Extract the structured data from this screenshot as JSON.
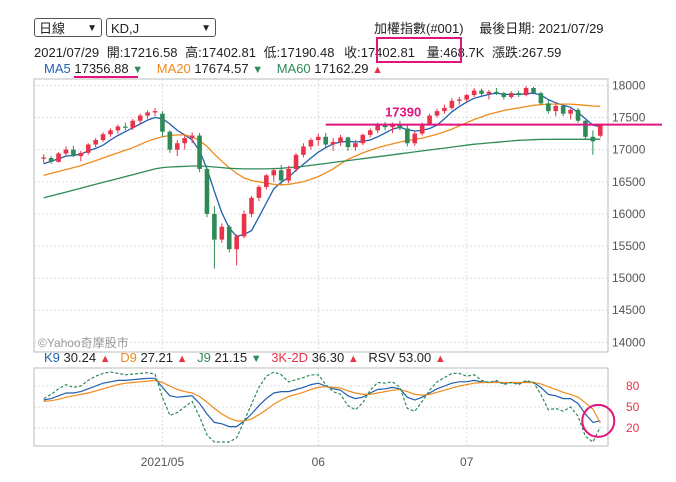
{
  "controls": {
    "period": "日線",
    "indicator": "KD,J"
  },
  "header": {
    "index_name": "加權指數(#001)",
    "last_date_label": "最後日期:",
    "last_date": "2021/07/29",
    "row": {
      "date": "2021/07/29",
      "open": "開:17216.58",
      "high": "高:17402.81",
      "low": "低:17190.48",
      "close": "收:17402.81",
      "volume": "量:468.7K",
      "change": "漲跌:267.59"
    }
  },
  "ma_legend": [
    {
      "label": "MA5",
      "value": "17356.88",
      "dir": "▼",
      "color": "#1f5fb0"
    },
    {
      "label": "MA20",
      "value": "17674.57",
      "dir": "▼",
      "color": "#f08a1c"
    },
    {
      "label": "MA60",
      "value": "17162.29",
      "dir": "▲",
      "color": "#2e8b57"
    }
  ],
  "kd_legend": [
    {
      "label": "K9",
      "value": "30.24",
      "dir": "▲",
      "color": "#1f5fb0"
    },
    {
      "label": "D9",
      "value": "27.21",
      "dir": "▲",
      "color": "#f08a1c"
    },
    {
      "label": "J9",
      "value": "21.15",
      "dir": "▼",
      "color": "#2e8b57"
    },
    {
      "label": "3K-2D",
      "value": "36.30",
      "dir": "▲",
      "color": "#e8334a"
    },
    {
      "label": "RSV",
      "value": "53.00",
      "dir": "▲",
      "color": "#222222"
    }
  ],
  "watermark": "©Yahoo奇摩股市",
  "annotation": {
    "label": "17390",
    "value": 17390,
    "color": "#e0147f"
  },
  "chart_data": {
    "type": "line",
    "price_axis": {
      "ticks": [
        14000,
        14500,
        15000,
        15500,
        16000,
        16500,
        17000,
        17500,
        18000
      ],
      "range": [
        13850,
        18100
      ]
    },
    "kd_axis": {
      "ticks": [
        20,
        50,
        80
      ],
      "range": [
        0,
        100
      ]
    },
    "x_labels": [
      {
        "label": "2021/05",
        "index": 16
      },
      {
        "label": "06",
        "index": 37
      },
      {
        "label": "07",
        "index": 57
      }
    ],
    "candles": [
      [
        16860,
        16930,
        16790,
        16880
      ],
      [
        16870,
        16900,
        16780,
        16810
      ],
      [
        16810,
        16960,
        16800,
        16940
      ],
      [
        16940,
        17050,
        16900,
        17000
      ],
      [
        17000,
        17060,
        16880,
        16900
      ],
      [
        16900,
        16980,
        16820,
        16950
      ],
      [
        16950,
        17100,
        16920,
        17080
      ],
      [
        17080,
        17180,
        17040,
        17150
      ],
      [
        17150,
        17270,
        17120,
        17240
      ],
      [
        17240,
        17330,
        17200,
        17300
      ],
      [
        17300,
        17390,
        17250,
        17360
      ],
      [
        17360,
        17420,
        17300,
        17340
      ],
      [
        17340,
        17480,
        17310,
        17450
      ],
      [
        17450,
        17560,
        17400,
        17530
      ],
      [
        17530,
        17610,
        17480,
        17580
      ],
      [
        17580,
        17650,
        17520,
        17600
      ],
      [
        17560,
        17600,
        17200,
        17280
      ],
      [
        17280,
        17300,
        16950,
        17000
      ],
      [
        17000,
        17150,
        16900,
        17100
      ],
      [
        17100,
        17230,
        17000,
        17180
      ],
      [
        17180,
        17270,
        17100,
        17220
      ],
      [
        17220,
        17260,
        16650,
        16700
      ],
      [
        16700,
        16720,
        15950,
        16000
      ],
      [
        16000,
        16120,
        15150,
        15600
      ],
      [
        15600,
        15850,
        15550,
        15800
      ],
      [
        15800,
        15830,
        15400,
        15450
      ],
      [
        15450,
        15680,
        15200,
        15650
      ],
      [
        15650,
        16050,
        15620,
        16000
      ],
      [
        16000,
        16280,
        15950,
        16250
      ],
      [
        16250,
        16450,
        16200,
        16420
      ],
      [
        16420,
        16620,
        16380,
        16600
      ],
      [
        16600,
        16720,
        16500,
        16680
      ],
      [
        16680,
        16760,
        16450,
        16520
      ],
      [
        16520,
        16750,
        16480,
        16700
      ],
      [
        16700,
        16950,
        16650,
        16920
      ],
      [
        16920,
        17100,
        16880,
        17050
      ],
      [
        17050,
        17180,
        17000,
        17150
      ],
      [
        17150,
        17250,
        17060,
        17200
      ],
      [
        17200,
        17260,
        17020,
        17080
      ],
      [
        17080,
        17180,
        16980,
        17120
      ],
      [
        17120,
        17230,
        17060,
        17190
      ],
      [
        17190,
        17200,
        16980,
        17040
      ],
      [
        17040,
        17150,
        16980,
        17100
      ],
      [
        17100,
        17250,
        17070,
        17230
      ],
      [
        17230,
        17330,
        17190,
        17300
      ],
      [
        17300,
        17420,
        17260,
        17380
      ],
      [
        17380,
        17430,
        17300,
        17350
      ],
      [
        17350,
        17420,
        17260,
        17400
      ],
      [
        17400,
        17450,
        17300,
        17330
      ],
      [
        17330,
        17400,
        17050,
        17100
      ],
      [
        17100,
        17280,
        17060,
        17250
      ],
      [
        17250,
        17420,
        17220,
        17400
      ],
      [
        17400,
        17560,
        17380,
        17530
      ],
      [
        17530,
        17640,
        17500,
        17600
      ],
      [
        17600,
        17700,
        17560,
        17650
      ],
      [
        17650,
        17800,
        17620,
        17760
      ],
      [
        17760,
        17820,
        17700,
        17780
      ],
      [
        17780,
        17870,
        17740,
        17850
      ],
      [
        17850,
        17960,
        17820,
        17920
      ],
      [
        17920,
        17950,
        17820,
        17870
      ],
      [
        17870,
        17930,
        17780,
        17900
      ],
      [
        17900,
        17960,
        17850,
        17880
      ],
      [
        17880,
        17900,
        17780,
        17820
      ],
      [
        17820,
        17910,
        17790,
        17880
      ],
      [
        17880,
        17920,
        17820,
        17850
      ],
      [
        17850,
        17990,
        17830,
        17960
      ],
      [
        17960,
        17980,
        17860,
        17880
      ],
      [
        17880,
        17900,
        17700,
        17720
      ],
      [
        17720,
        17780,
        17560,
        17600
      ],
      [
        17600,
        17700,
        17520,
        17680
      ],
      [
        17680,
        17700,
        17520,
        17560
      ],
      [
        17560,
        17640,
        17470,
        17620
      ],
      [
        17620,
        17650,
        17420,
        17450
      ],
      [
        17450,
        17460,
        17160,
        17200
      ],
      [
        17200,
        17300,
        16920,
        17130
      ],
      [
        17216.58,
        17402.81,
        17190.48,
        17402.81
      ]
    ],
    "series": [
      {
        "name": "MA5",
        "color": "#1f5fb0",
        "values": [
          16780,
          16820,
          16860,
          16900,
          16910,
          16930,
          16980,
          17020,
          17070,
          17150,
          17220,
          17280,
          17340,
          17400,
          17460,
          17500,
          17480,
          17400,
          17300,
          17230,
          17150,
          16980,
          16700,
          16350,
          16020,
          15780,
          15650,
          15680,
          15740,
          15950,
          16170,
          16390,
          16490,
          16570,
          16680,
          16770,
          16870,
          16960,
          17030,
          17090,
          17120,
          17130,
          17120,
          17130,
          17150,
          17200,
          17260,
          17320,
          17350,
          17310,
          17290,
          17300,
          17330,
          17380,
          17480,
          17590,
          17670,
          17740,
          17800,
          17830,
          17860,
          17880,
          17860,
          17860,
          17860,
          17870,
          17880,
          17850,
          17780,
          17730,
          17690,
          17660,
          17580,
          17480,
          17380,
          17356.88
        ]
      },
      {
        "name": "MA20",
        "color": "#f08a1c",
        "values": [
          16600,
          16630,
          16660,
          16690,
          16720,
          16750,
          16790,
          16830,
          16870,
          16910,
          16950,
          16990,
          17030,
          17080,
          17130,
          17170,
          17200,
          17220,
          17230,
          17230,
          17200,
          17140,
          17050,
          16930,
          16820,
          16720,
          16630,
          16560,
          16520,
          16500,
          16480,
          16460,
          16450,
          16460,
          16480,
          16500,
          16540,
          16580,
          16640,
          16700,
          16780,
          16850,
          16900,
          16950,
          16990,
          17030,
          17060,
          17090,
          17120,
          17140,
          17160,
          17180,
          17210,
          17240,
          17280,
          17320,
          17370,
          17420,
          17470,
          17510,
          17550,
          17580,
          17610,
          17630,
          17650,
          17670,
          17690,
          17700,
          17710,
          17710,
          17710,
          17710,
          17700,
          17690,
          17680,
          17674.57
        ]
      },
      {
        "name": "MA60",
        "color": "#2e8b57",
        "values": [
          16250,
          16280,
          16310,
          16340,
          16370,
          16400,
          16430,
          16460,
          16490,
          16520,
          16550,
          16580,
          16610,
          16640,
          16670,
          16700,
          16720,
          16730,
          16735,
          16740,
          16745,
          16745,
          16740,
          16730,
          16720,
          16710,
          16705,
          16700,
          16700,
          16700,
          16700,
          16705,
          16710,
          16720,
          16730,
          16740,
          16755,
          16770,
          16785,
          16800,
          16815,
          16830,
          16845,
          16860,
          16875,
          16890,
          16905,
          16920,
          16935,
          16950,
          16965,
          16980,
          16995,
          17010,
          17025,
          17040,
          17055,
          17070,
          17085,
          17095,
          17105,
          17115,
          17125,
          17135,
          17145,
          17150,
          17155,
          17160,
          17160,
          17162,
          17162,
          17162,
          17162,
          17162,
          17162,
          17162.29
        ]
      }
    ],
    "kd": [
      {
        "name": "K9",
        "color": "#1f5fb0",
        "dash": false,
        "values": [
          60,
          62,
          66,
          70,
          70,
          72,
          76,
          80,
          84,
          86,
          88,
          88,
          89,
          90,
          91,
          91,
          78,
          66,
          64,
          65,
          66,
          55,
          40,
          28,
          26,
          22,
          22,
          30,
          40,
          52,
          62,
          70,
          72,
          72,
          75,
          78,
          82,
          84,
          80,
          76,
          74,
          66,
          62,
          64,
          70,
          75,
          76,
          78,
          76,
          64,
          60,
          64,
          70,
          76,
          80,
          84,
          86,
          86,
          88,
          86,
          85,
          86,
          84,
          85,
          84,
          86,
          85,
          78,
          68,
          66,
          62,
          62,
          55,
          40,
          28,
          30.24
        ]
      },
      {
        "name": "D9",
        "color": "#f08a1c",
        "dash": false,
        "values": [
          58,
          59,
          61,
          64,
          66,
          68,
          70,
          73,
          76,
          79,
          82,
          84,
          85,
          86,
          87,
          88,
          85,
          80,
          75,
          72,
          70,
          65,
          57,
          48,
          40,
          34,
          30,
          30,
          33,
          39,
          46,
          54,
          60,
          65,
          68,
          71,
          75,
          78,
          79,
          78,
          77,
          73,
          70,
          68,
          68,
          70,
          72,
          74,
          75,
          72,
          68,
          67,
          68,
          71,
          74,
          77,
          80,
          82,
          84,
          85,
          85,
          85,
          85,
          85,
          85,
          85,
          85,
          83,
          79,
          75,
          71,
          68,
          64,
          56,
          47,
          27.21
        ]
      },
      {
        "name": "J9",
        "color": "#2e8b57",
        "dash": true,
        "values": [
          62,
          68,
          76,
          82,
          78,
          80,
          88,
          94,
          98,
          100,
          98,
          96,
          97,
          98,
          99,
          97,
          64,
          38,
          42,
          50,
          58,
          36,
          10,
          0,
          0,
          0,
          6,
          30,
          54,
          78,
          94,
          100,
          96,
          86,
          89,
          92,
          96,
          96,
          82,
          72,
          68,
          52,
          46,
          56,
          74,
          85,
          84,
          86,
          78,
          48,
          44,
          58,
          74,
          86,
          92,
          98,
          98,
          94,
          96,
          88,
          85,
          88,
          82,
          85,
          82,
          88,
          85,
          68,
          46,
          48,
          44,
          50,
          37,
          8,
          0,
          21.15
        ]
      }
    ]
  }
}
